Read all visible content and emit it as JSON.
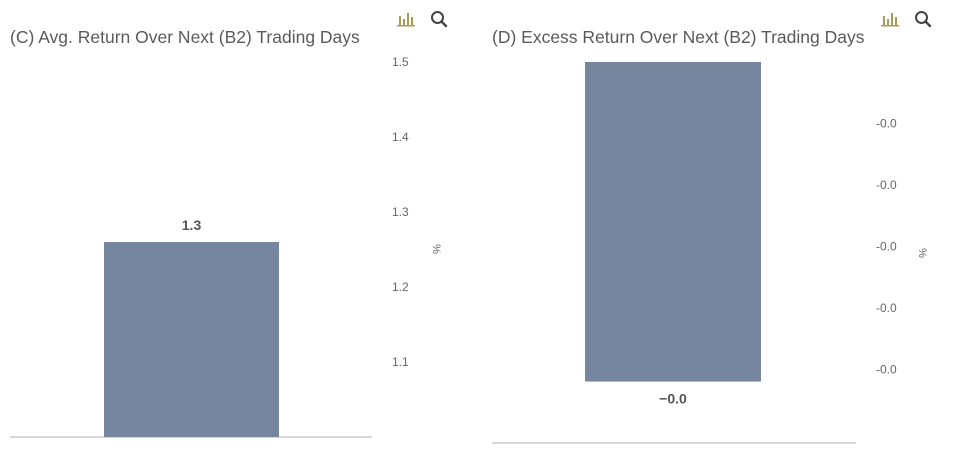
{
  "toolbar": {
    "chart_icon": "bar-chart-icon",
    "search_icon": "magnifier-icon",
    "icon_color": "#a89a58"
  },
  "chart_data": [
    {
      "type": "bar",
      "title": "(C) Avg. Return Over Next (B2) Trading Days",
      "categories": [
        ""
      ],
      "values": [
        1.26
      ],
      "data_labels": [
        "1.3"
      ],
      "yaxis_ticks": [
        "1.5",
        "1.4",
        "1.3",
        "1.2",
        "1.1"
      ],
      "tick_values": [
        1.5,
        1.4,
        1.3,
        1.2,
        1.1
      ],
      "ylim": [
        1.0,
        1.5
      ],
      "ylabel": "%",
      "yaxis_position": "right",
      "bar_color": "#76869f",
      "grid": false
    },
    {
      "type": "bar",
      "title": "(D) Excess Return Over Next (B2) Trading Days",
      "categories": [
        ""
      ],
      "values": [
        -0.0026
      ],
      "data_labels": [
        "−0.0"
      ],
      "yaxis_ticks": [
        "-0.0",
        "-0.0",
        "-0.0",
        "-0.0",
        "-0.0"
      ],
      "tick_values": [
        -0.0005,
        -0.001,
        -0.0015,
        -0.002,
        -0.0025
      ],
      "ylim": [
        -0.0031,
        0.0
      ],
      "ylabel": "%",
      "yaxis_position": "right",
      "bar_color": "#76869f",
      "grid": false
    }
  ]
}
